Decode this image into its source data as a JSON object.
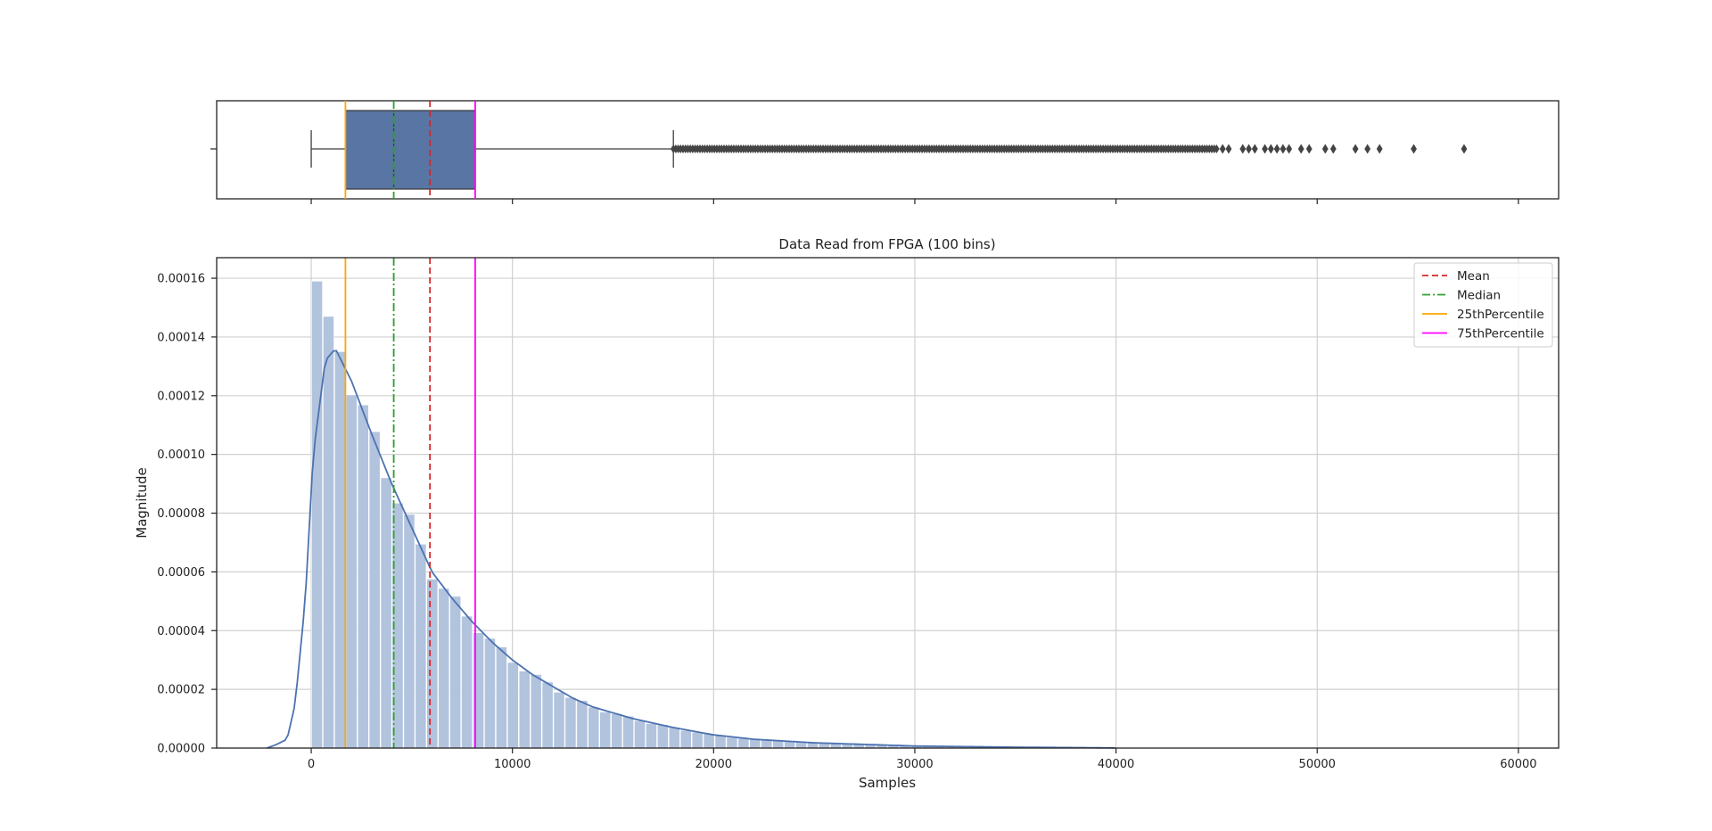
{
  "chart_data": [
    {
      "type": "boxplot",
      "whisker_low": 0,
      "q1": 1700,
      "median": 4100,
      "mean": 5900,
      "q3": 8150,
      "whisker_high": 18000,
      "dense_outliers_range": [
        18000,
        45000
      ],
      "outliers": [
        45300,
        45600,
        46300,
        46600,
        46900,
        47400,
        47700,
        48000,
        48300,
        48600,
        49200,
        49600,
        50400,
        50800,
        51900,
        52500,
        53100,
        54800,
        57300
      ],
      "xlim": [
        -4700,
        62000
      ],
      "x_ticks": [
        0,
        10000,
        20000,
        30000,
        40000,
        50000,
        60000
      ]
    },
    {
      "type": "histogram",
      "title": "Data Read from FPGA (100 bins)",
      "xlabel": "Samples",
      "ylabel": "Magnitude",
      "xlim": [
        -4700,
        62000
      ],
      "ylim": [
        0,
        0.000167
      ],
      "x_ticks": [
        0,
        10000,
        20000,
        30000,
        40000,
        50000,
        60000
      ],
      "x_tick_labels": [
        "0",
        "10000",
        "20000",
        "30000",
        "40000",
        "50000",
        "60000"
      ],
      "y_ticks": [
        0,
        2e-05,
        4e-05,
        6e-05,
        8e-05,
        0.0001,
        0.00012,
        0.00014,
        0.00016
      ],
      "y_tick_labels": [
        "0.00000",
        "0.00002",
        "0.00004",
        "0.00006",
        "0.00008",
        "0.00010",
        "0.00012",
        "0.00014",
        "0.00016"
      ],
      "grid": true,
      "bins": {
        "start": 0,
        "width": 573,
        "count": 100,
        "peak_density": 0.000159
      },
      "kde_anchor_points": [
        [
          -2200,
          0
        ],
        [
          -1800,
          1e-06
        ],
        [
          -1200,
          3e-06
        ],
        [
          -800,
          1.5e-05
        ],
        [
          -300,
          5e-05
        ],
        [
          100,
          0.0001
        ],
        [
          700,
          0.000132
        ],
        [
          1200,
          0.000136
        ],
        [
          2000,
          0.000125
        ],
        [
          3000,
          0.000107
        ],
        [
          4000,
          9e-05
        ],
        [
          5000,
          7.5e-05
        ],
        [
          6000,
          6e-05
        ],
        [
          7000,
          5.1e-05
        ],
        [
          8000,
          4.3e-05
        ],
        [
          9000,
          3.6e-05
        ],
        [
          10000,
          3e-05
        ],
        [
          11000,
          2.5e-05
        ],
        [
          12000,
          2.1e-05
        ],
        [
          13000,
          1.7e-05
        ],
        [
          14000,
          1.4e-05
        ],
        [
          15000,
          1.2e-05
        ],
        [
          16000,
          1e-05
        ],
        [
          18000,
          7e-06
        ],
        [
          20000,
          4.5e-06
        ],
        [
          22000,
          3e-06
        ],
        [
          25000,
          1.8e-06
        ],
        [
          30000,
          7e-07
        ],
        [
          35000,
          3e-07
        ],
        [
          40000,
          5e-08
        ]
      ],
      "vlines": [
        {
          "name": "Mean",
          "x": 5900,
          "color": "#d62728",
          "style": "dashed"
        },
        {
          "name": "Median",
          "x": 4100,
          "color": "#2ca02c",
          "style": "dashdot"
        },
        {
          "name": "25thPercentile",
          "x": 1700,
          "color": "#ffa500",
          "style": "solid"
        },
        {
          "name": "75thPercentile",
          "x": 8150,
          "color": "#ff00ff",
          "style": "solid"
        }
      ],
      "legend": {
        "placement": "top-right",
        "entries": [
          "Mean",
          "Median",
          "25thPercentile",
          "75thPercentile"
        ]
      }
    }
  ],
  "colors": {
    "box_fill": "#5975a4",
    "bar_fill": "#b2c3de",
    "kde_line": "#4c72b0",
    "outlier": "#444444",
    "grid": "#d0d0d0",
    "axis": "#222222"
  }
}
